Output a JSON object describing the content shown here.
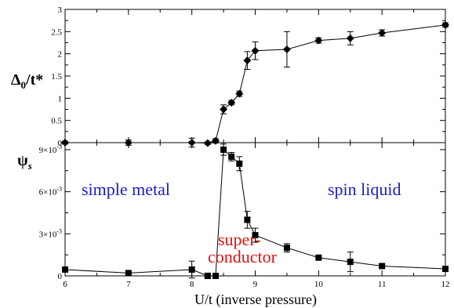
{
  "chart_data": [
    {
      "type": "line",
      "panel": "top",
      "ylabel_main": "Δ",
      "ylabel_sub": "0",
      "ylabel_rest": "/t*",
      "xlim": [
        6,
        12
      ],
      "ylim": [
        0,
        3
      ],
      "yticks": [
        0,
        0.5,
        1,
        1.5,
        2,
        2.5,
        3
      ],
      "ytick_labels": [
        "0",
        "0.5",
        "1",
        "1.5",
        "2",
        "2.5",
        "3"
      ],
      "marker": "diamond",
      "series": [
        {
          "x": [
            6,
            7,
            8,
            8.25,
            8.375,
            8.5,
            8.625,
            8.75,
            8.875,
            9,
            9.5,
            10,
            10.5,
            11,
            12
          ],
          "y": [
            0,
            0,
            0,
            -0.01,
            0.04,
            0.75,
            0.9,
            1.1,
            1.85,
            2.07,
            2.1,
            2.3,
            2.35,
            2.47,
            2.65
          ],
          "err": [
            0.03,
            0.06,
            0.1,
            0.03,
            0.05,
            0.1,
            0.05,
            0.06,
            0.2,
            0.2,
            0.4,
            0.06,
            0.15,
            0.07,
            0.05
          ]
        }
      ]
    },
    {
      "type": "line",
      "panel": "bottom",
      "ylabel_main": "ψ",
      "ylabel_sub": "s",
      "xlabel": "U/t (inverse pressure)",
      "xlim": [
        6,
        12
      ],
      "xticks": [
        6,
        7,
        8,
        9,
        10,
        11,
        12
      ],
      "xtick_labels": [
        "6",
        "7",
        "8",
        "9",
        "10",
        "11",
        "12"
      ],
      "ylim": [
        0,
        0.0095
      ],
      "yticks": [
        0,
        0.003,
        0.006,
        0.009
      ],
      "ytick_labels": [
        {
          "base": "0",
          "exp": ""
        },
        {
          "base": "3×10",
          "exp": "-3"
        },
        {
          "base": "6×10",
          "exp": "-3"
        },
        {
          "base": "9×10",
          "exp": "-3"
        }
      ],
      "marker": "square",
      "series": [
        {
          "x": [
            6,
            7,
            8,
            8.25,
            8.375,
            8.5,
            8.625,
            8.75,
            8.875,
            9,
            9.5,
            10,
            10.5,
            11,
            12
          ],
          "y": [
            0.00045,
            0.0002,
            0.00045,
            0.0,
            0.0,
            0.009,
            0.0085,
            0.008,
            0.004,
            0.0029,
            0.002,
            0.0013,
            0.001,
            0.0007,
            0.0005
          ],
          "err": [
            0.0001,
            0.0001,
            0.0006,
            0.0002,
            0.0001,
            0.0004,
            0.0003,
            0.0005,
            0.0006,
            0.0005,
            0.0003,
            0.0001,
            0.0007,
            0.0001,
            0.0001
          ]
        }
      ],
      "annotations": {
        "simple_metal": "simple metal",
        "spin_liquid": "spin liquid",
        "superconductor_1": "super-",
        "superconductor_2": "conductor"
      },
      "annotation_colors": {
        "simple_metal": "#1a1acc",
        "spin_liquid": "#1a1acc",
        "superconductor": "#e01010"
      }
    }
  ]
}
